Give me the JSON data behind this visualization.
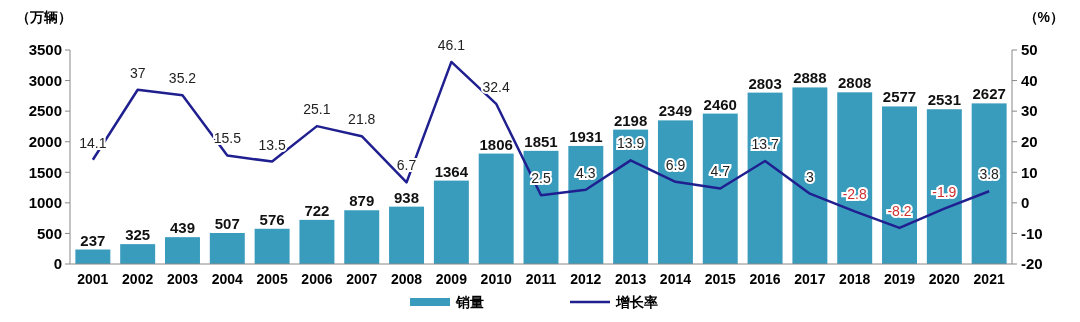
{
  "chart_data": {
    "type": "bar",
    "ylabel": "（万辆）",
    "y2label": "（%）",
    "categories": [
      "2001",
      "2002",
      "2003",
      "2004",
      "2005",
      "2006",
      "2007",
      "2008",
      "2009",
      "2010",
      "2011",
      "2012",
      "2013",
      "2014",
      "2015",
      "2016",
      "2017",
      "2018",
      "2019",
      "2020",
      "2021"
    ],
    "series": [
      {
        "name": "销量",
        "type": "bar",
        "color": "#3a9cbd",
        "values": [
          237,
          325,
          439,
          507,
          576,
          722,
          879,
          938,
          1364,
          1806,
          1851,
          1931,
          2198,
          2349,
          2460,
          2803,
          2888,
          2808,
          2577,
          2531,
          2627
        ]
      },
      {
        "name": "增长率",
        "type": "line",
        "axis": "y2",
        "color": "#1f1f8f",
        "values": [
          14.1,
          37,
          35.2,
          15.5,
          13.5,
          25.1,
          21.8,
          6.7,
          46.1,
          32.4,
          2.5,
          4.3,
          13.9,
          6.9,
          4.7,
          13.7,
          3,
          -2.8,
          -8.2,
          -1.9,
          3.8
        ]
      }
    ],
    "ylim": [
      0,
      3500
    ],
    "yticks": [
      0,
      500,
      1000,
      1500,
      2000,
      2500,
      3000,
      3500
    ],
    "y2lim": [
      -20,
      50
    ],
    "y2ticks": [
      -20,
      -10,
      0,
      10,
      20,
      30,
      40,
      50
    ],
    "data_labels": true,
    "legend": "bottom",
    "marker": "none"
  }
}
